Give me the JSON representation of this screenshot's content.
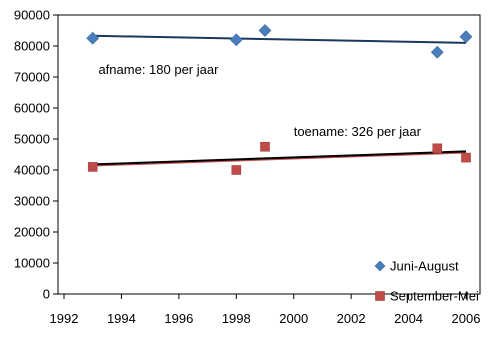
{
  "chart_data": {
    "type": "scatter",
    "xlim": [
      1992,
      2007
    ],
    "ylim": [
      0,
      90000
    ],
    "x_ticks": [
      1992,
      1994,
      1996,
      1998,
      2000,
      2002,
      2004,
      2006
    ],
    "y_ticks": [
      0,
      10000,
      20000,
      30000,
      40000,
      50000,
      60000,
      70000,
      80000,
      90000
    ],
    "x_tick_labels": [
      "1992",
      "1994",
      "1996",
      "1998",
      "2000",
      "2002",
      "2004",
      "2006"
    ],
    "y_tick_labels": [
      "0",
      "10000",
      "20000",
      "30000",
      "40000",
      "50000",
      "60000",
      "70000",
      "80000",
      "90000"
    ],
    "grid": false,
    "legend_position": "bottom-right",
    "series": [
      {
        "name": "Juni-August",
        "marker": "diamond",
        "color": "#4a7ebb",
        "x": [
          1993,
          1998,
          1999,
          2005,
          2006
        ],
        "y": [
          82500,
          82000,
          85000,
          78000,
          83000
        ],
        "trend": {
          "x": [
            1993,
            2006
          ],
          "y": [
            83300,
            81000
          ],
          "color": "#1a3a5c"
        }
      },
      {
        "name": "September-Mei",
        "marker": "square",
        "color": "#be4b48",
        "x": [
          1993,
          1998,
          1999,
          2005,
          2006
        ],
        "y": [
          41000,
          40000,
          47500,
          47000,
          44000
        ],
        "trend": {
          "x": [
            1993,
            2006
          ],
          "y": [
            41800,
            46000
          ],
          "color": "#000000",
          "underline_color": "#c0504d"
        }
      }
    ],
    "annotations": [
      {
        "text": "afname: 180 per jaar",
        "x": 1993.2,
        "y": 72500
      },
      {
        "text": "toename: 326 per jaar",
        "x": 2000.0,
        "y": 52500
      }
    ]
  }
}
